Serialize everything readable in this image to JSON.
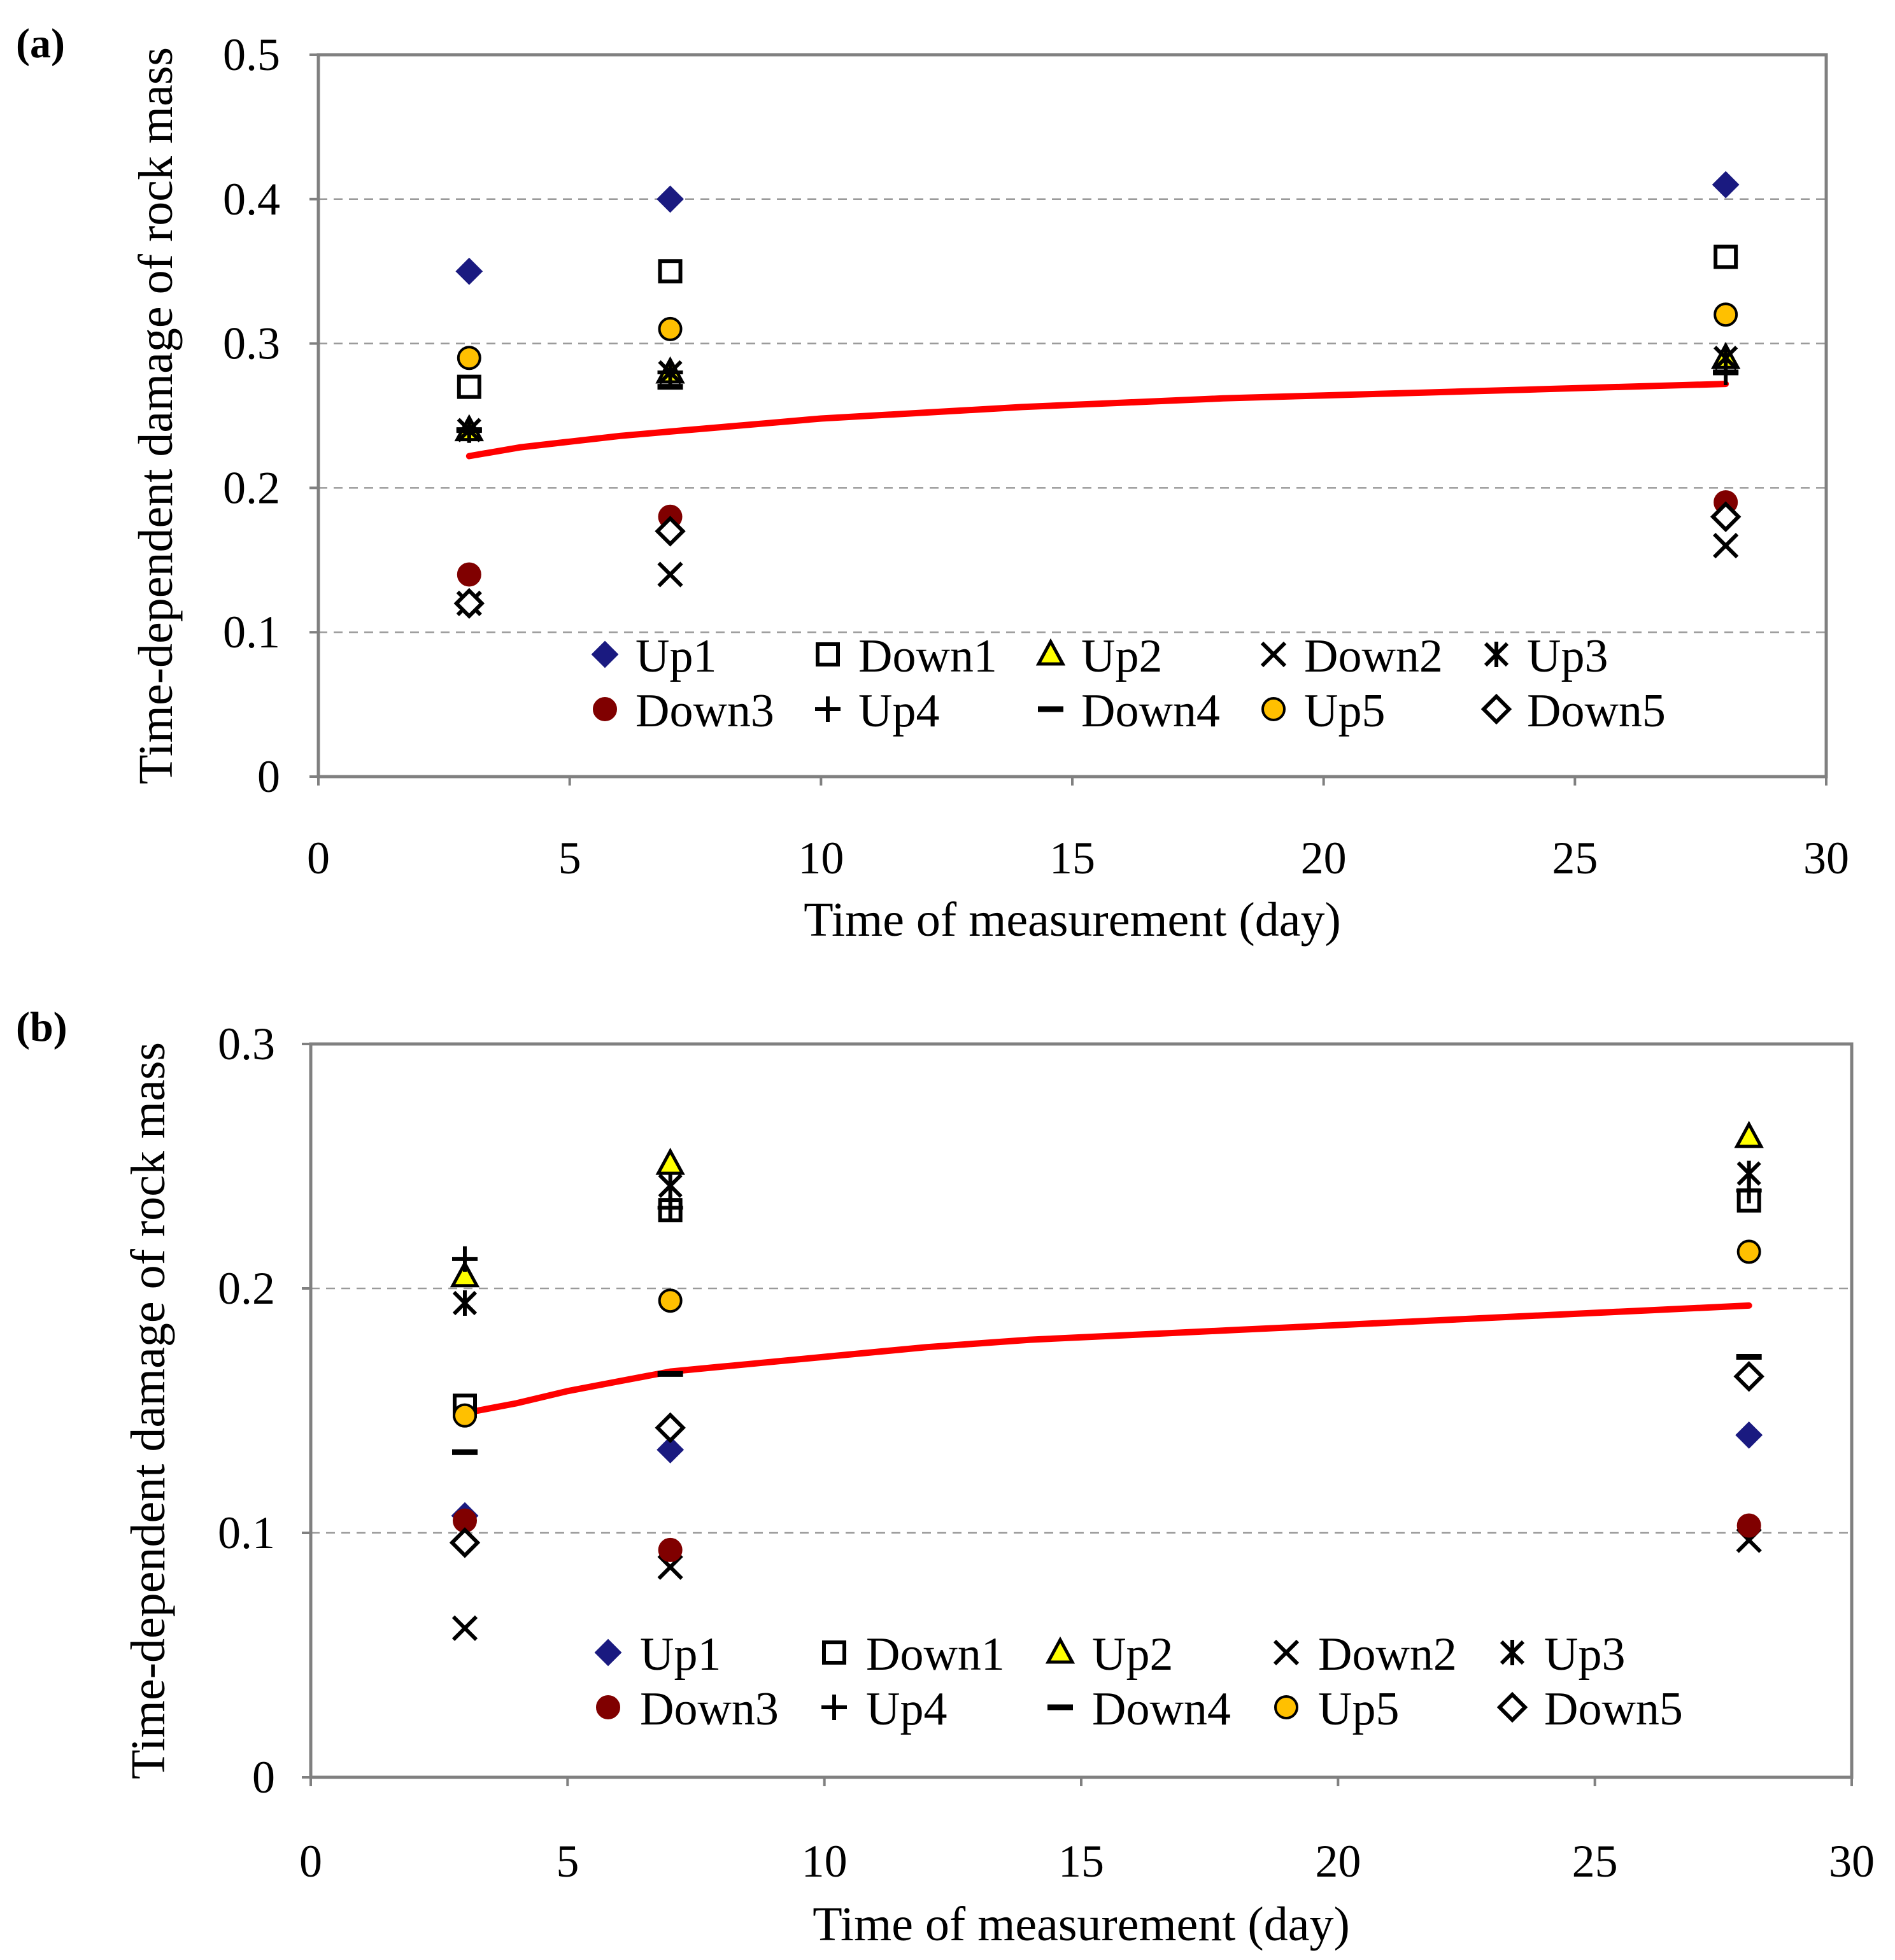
{
  "chart_data": [
    {
      "panel_label": "(a)",
      "type": "scatter",
      "xlabel": "Time of measurement (day)",
      "ylabel": "Time-dependent damage of rock mass",
      "xlim": [
        0,
        30
      ],
      "ylim": [
        0,
        0.5
      ],
      "xticks": [
        "0",
        "5",
        "10",
        "15",
        "20",
        "25",
        "30"
      ],
      "yticks": [
        "0",
        "0.1",
        "0.2",
        "0.3",
        "0.4",
        "0.5"
      ],
      "grid": "horizontal dashed",
      "legend": "bottom-inside",
      "x": [
        3,
        7,
        28
      ],
      "series": [
        {
          "name": "Up1",
          "marker": "diamond-filled",
          "color": "#1a1a80",
          "values": [
            0.35,
            0.4,
            0.41
          ]
        },
        {
          "name": "Down1",
          "marker": "square-open",
          "color": "#000000",
          "values": [
            0.27,
            0.35,
            0.36
          ]
        },
        {
          "name": "Up2",
          "marker": "triangle-filled",
          "color": "#ffff00",
          "values": [
            0.24,
            0.28,
            0.29
          ]
        },
        {
          "name": "Down2",
          "marker": "x",
          "color": "#000000",
          "values": [
            0.12,
            0.14,
            0.16
          ]
        },
        {
          "name": "Up3",
          "marker": "asterisk",
          "color": "#000000",
          "values": [
            0.24,
            0.28,
            0.29
          ]
        },
        {
          "name": "Down3",
          "marker": "circle-filled",
          "color": "#800000",
          "values": [
            0.14,
            0.18,
            0.19
          ]
        },
        {
          "name": "Up4",
          "marker": "plus",
          "color": "#000000",
          "values": [
            0.24,
            0.28,
            0.28
          ]
        },
        {
          "name": "Down4",
          "marker": "dash",
          "color": "#000000",
          "values": [
            0.24,
            0.27,
            0.28
          ]
        },
        {
          "name": "Up5",
          "marker": "circle-yellow",
          "color": "#ffc000",
          "values": [
            0.29,
            0.31,
            0.32
          ]
        },
        {
          "name": "Down5",
          "marker": "diamond-open",
          "color": "#000000",
          "values": [
            0.12,
            0.17,
            0.18
          ]
        }
      ],
      "fit_curve": {
        "color": "#ff0000",
        "x": [
          3,
          4,
          5,
          6,
          7,
          8,
          9,
          10,
          12,
          14,
          16,
          18,
          20,
          22,
          24,
          26,
          28
        ],
        "y": [
          0.222,
          0.228,
          0.232,
          0.236,
          0.239,
          0.242,
          0.245,
          0.248,
          0.252,
          0.256,
          0.259,
          0.262,
          0.264,
          0.266,
          0.268,
          0.27,
          0.272
        ]
      }
    },
    {
      "panel_label": "(b)",
      "type": "scatter",
      "xlabel": "Time of measurement (day)",
      "ylabel": "Time-dependent damage of rock mass",
      "xlim": [
        0,
        30
      ],
      "ylim": [
        0,
        0.3
      ],
      "xticks": [
        "0",
        "5",
        "10",
        "15",
        "20",
        "25",
        "30"
      ],
      "yticks": [
        "0",
        "0.1",
        "0.2",
        "0.3"
      ],
      "grid": "horizontal dashed",
      "legend": "bottom-inside",
      "x": [
        3,
        7,
        28
      ],
      "series": [
        {
          "name": "Up1",
          "marker": "diamond-filled",
          "color": "#1a1a80",
          "values": [
            0.107,
            0.134,
            0.14
          ]
        },
        {
          "name": "Down1",
          "marker": "square-open",
          "color": "#000000",
          "values": [
            0.152,
            0.232,
            0.236
          ]
        },
        {
          "name": "Up2",
          "marker": "triangle-filled",
          "color": "#ffff00",
          "values": [
            0.205,
            0.251,
            0.262
          ]
        },
        {
          "name": "Down2",
          "marker": "x",
          "color": "#000000",
          "values": [
            0.061,
            0.086,
            0.097
          ]
        },
        {
          "name": "Up3",
          "marker": "asterisk",
          "color": "#000000",
          "values": [
            0.194,
            0.242,
            0.247
          ]
        },
        {
          "name": "Down3",
          "marker": "circle-filled",
          "color": "#800000",
          "values": [
            0.105,
            0.093,
            0.103
          ]
        },
        {
          "name": "Up4",
          "marker": "plus",
          "color": "#000000",
          "values": [
            0.212,
            0.233,
            0.24
          ]
        },
        {
          "name": "Down4",
          "marker": "dash",
          "color": "#000000",
          "values": [
            0.133,
            0.165,
            0.172
          ]
        },
        {
          "name": "Up5",
          "marker": "circle-yellow",
          "color": "#ffc000",
          "values": [
            0.148,
            0.195,
            0.215
          ]
        },
        {
          "name": "Down5",
          "marker": "diamond-open",
          "color": "#000000",
          "values": [
            0.096,
            0.143,
            0.164
          ]
        }
      ],
      "fit_curve": {
        "color": "#ff0000",
        "x": [
          3,
          4,
          5,
          6,
          7,
          8,
          9,
          10,
          12,
          14,
          16,
          18,
          20,
          22,
          24,
          26,
          28
        ],
        "y": [
          0.149,
          0.153,
          0.158,
          0.162,
          0.166,
          0.168,
          0.17,
          0.172,
          0.176,
          0.179,
          0.181,
          0.183,
          0.185,
          0.187,
          0.189,
          0.191,
          0.193
        ]
      }
    }
  ]
}
